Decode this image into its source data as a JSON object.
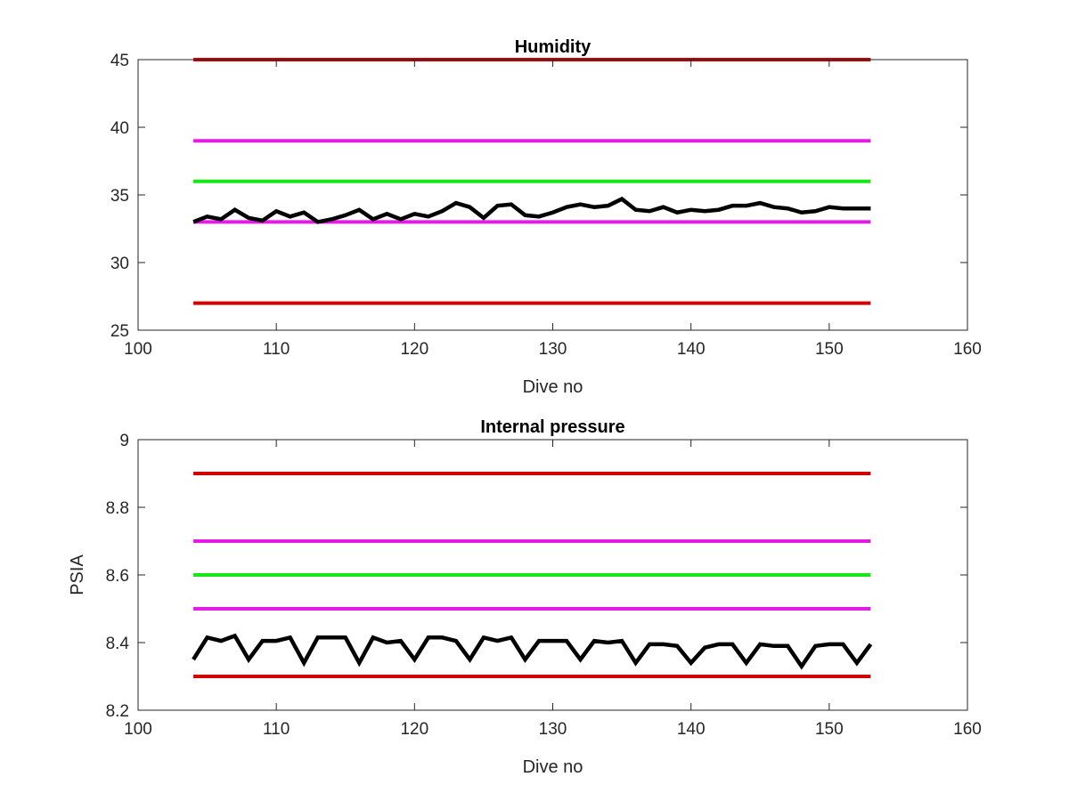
{
  "chart_data": [
    {
      "type": "line",
      "title": "Humidity",
      "xlabel": "Dive no",
      "ylabel": "",
      "xlim": [
        100,
        160
      ],
      "ylim": [
        25,
        45
      ],
      "xticks": [
        100,
        110,
        120,
        130,
        140,
        150,
        160
      ],
      "yticks": [
        25,
        30,
        35,
        40,
        45
      ],
      "xtick_labels": [
        "100",
        "110",
        "120",
        "130",
        "140",
        "150",
        "160"
      ],
      "ytick_labels": [
        "25",
        "30",
        "35",
        "40",
        "45"
      ],
      "grid": false,
      "series": [
        {
          "x": [
            104,
            153
          ],
          "values": [
            45,
            45
          ],
          "color": "#d40000",
          "style": "limit"
        },
        {
          "x": [
            104,
            153
          ],
          "values": [
            39,
            39
          ],
          "color": "#e619e6",
          "style": "limit"
        },
        {
          "x": [
            104,
            153
          ],
          "values": [
            36,
            36
          ],
          "color": "#17e617",
          "style": "limit"
        },
        {
          "x": [
            104,
            153
          ],
          "values": [
            33,
            33
          ],
          "color": "#e619e6",
          "style": "limit"
        },
        {
          "x": [
            104,
            153
          ],
          "values": [
            27,
            27
          ],
          "color": "#d40000",
          "style": "limit"
        },
        {
          "x": [
            104,
            105,
            106,
            107,
            108,
            109,
            110,
            111,
            112,
            113,
            114,
            115,
            116,
            117,
            118,
            119,
            120,
            121,
            122,
            123,
            124,
            125,
            126,
            127,
            128,
            129,
            130,
            131,
            132,
            133,
            134,
            135,
            136,
            137,
            138,
            139,
            140,
            141,
            142,
            143,
            144,
            145,
            146,
            147,
            148,
            149,
            150,
            151,
            152,
            153
          ],
          "values": [
            33.0,
            33.4,
            33.2,
            33.9,
            33.3,
            33.1,
            33.8,
            33.4,
            33.7,
            33.0,
            33.2,
            33.5,
            33.9,
            33.2,
            33.6,
            33.2,
            33.6,
            33.4,
            33.8,
            34.4,
            34.1,
            33.3,
            34.2,
            34.3,
            33.5,
            33.4,
            33.7,
            34.1,
            34.3,
            34.1,
            34.2,
            34.7,
            33.9,
            33.8,
            34.1,
            33.7,
            33.9,
            33.8,
            33.9,
            34.2,
            34.2,
            34.4,
            34.1,
            34.0,
            33.7,
            33.8,
            34.1,
            34.0,
            34.0,
            34.0
          ],
          "color": "#000000",
          "style": "data"
        }
      ]
    },
    {
      "type": "line",
      "title": "Internal pressure",
      "xlabel": "Dive no",
      "ylabel": "PSIA",
      "xlim": [
        100,
        160
      ],
      "ylim": [
        8.2,
        9.0
      ],
      "xticks": [
        100,
        110,
        120,
        130,
        140,
        150,
        160
      ],
      "yticks": [
        8.2,
        8.4,
        8.6,
        8.8,
        9.0
      ],
      "xtick_labels": [
        "100",
        "110",
        "120",
        "130",
        "140",
        "150",
        "160"
      ],
      "ytick_labels": [
        "8.2",
        "8.4",
        "8.6",
        "8.8",
        "9"
      ],
      "grid": false,
      "series": [
        {
          "x": [
            104,
            153
          ],
          "values": [
            8.9,
            8.9
          ],
          "color": "#d40000",
          "style": "limit"
        },
        {
          "x": [
            104,
            153
          ],
          "values": [
            8.7,
            8.7
          ],
          "color": "#e619e6",
          "style": "limit"
        },
        {
          "x": [
            104,
            153
          ],
          "values": [
            8.6,
            8.6
          ],
          "color": "#17e617",
          "style": "limit"
        },
        {
          "x": [
            104,
            153
          ],
          "values": [
            8.5,
            8.5
          ],
          "color": "#e619e6",
          "style": "limit"
        },
        {
          "x": [
            104,
            153
          ],
          "values": [
            8.3,
            8.3
          ],
          "color": "#d40000",
          "style": "limit"
        },
        {
          "x": [
            104,
            105,
            106,
            107,
            108,
            109,
            110,
            111,
            112,
            113,
            114,
            115,
            116,
            117,
            118,
            119,
            120,
            121,
            122,
            123,
            124,
            125,
            126,
            127,
            128,
            129,
            130,
            131,
            132,
            133,
            134,
            135,
            136,
            137,
            138,
            139,
            140,
            141,
            142,
            143,
            144,
            145,
            146,
            147,
            148,
            149,
            150,
            151,
            152,
            153
          ],
          "values": [
            8.35,
            8.415,
            8.405,
            8.42,
            8.35,
            8.405,
            8.405,
            8.415,
            8.34,
            8.415,
            8.415,
            8.415,
            8.34,
            8.415,
            8.4,
            8.405,
            8.35,
            8.415,
            8.415,
            8.405,
            8.35,
            8.415,
            8.405,
            8.415,
            8.35,
            8.405,
            8.405,
            8.405,
            8.35,
            8.405,
            8.4,
            8.405,
            8.34,
            8.395,
            8.395,
            8.39,
            8.34,
            8.385,
            8.395,
            8.395,
            8.34,
            8.395,
            8.39,
            8.39,
            8.33,
            8.39,
            8.395,
            8.395,
            8.34,
            8.395
          ],
          "color": "#000000",
          "style": "data"
        }
      ]
    }
  ]
}
